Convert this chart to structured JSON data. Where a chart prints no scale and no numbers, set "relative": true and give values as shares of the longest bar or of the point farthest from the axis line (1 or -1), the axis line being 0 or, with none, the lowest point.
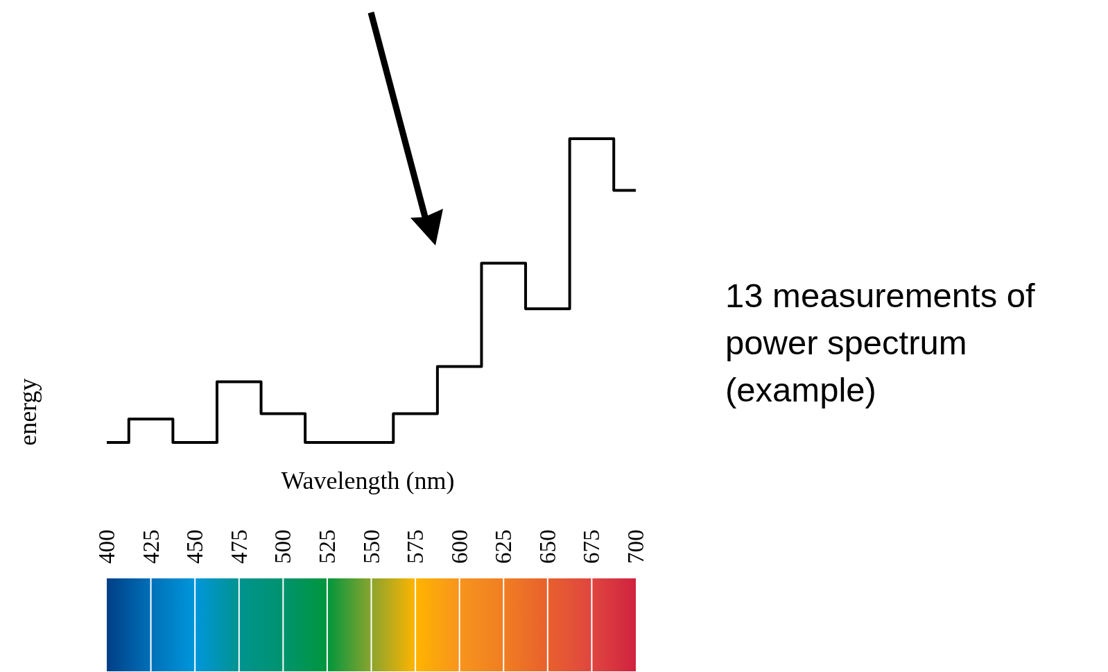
{
  "chart_data": {
    "type": "step",
    "relative": true,
    "xlabel": "Wavelength (nm)",
    "ylabel": "energy",
    "x": [
      400,
      425,
      450,
      475,
      500,
      525,
      550,
      575,
      600,
      625,
      650,
      675,
      700
    ],
    "values": [
      0,
      0.077,
      0,
      0.2,
      0.095,
      0,
      0,
      0.095,
      0.25,
      0.59,
      0.44,
      1,
      0.83
    ],
    "color": "#000000",
    "xlim": [
      400,
      700
    ],
    "xticks": [
      400,
      425,
      450,
      475,
      500,
      525,
      550,
      575,
      600,
      625,
      650,
      675,
      700
    ],
    "annotations": [
      "13 measurements of power spectrum (example)"
    ]
  }
}
